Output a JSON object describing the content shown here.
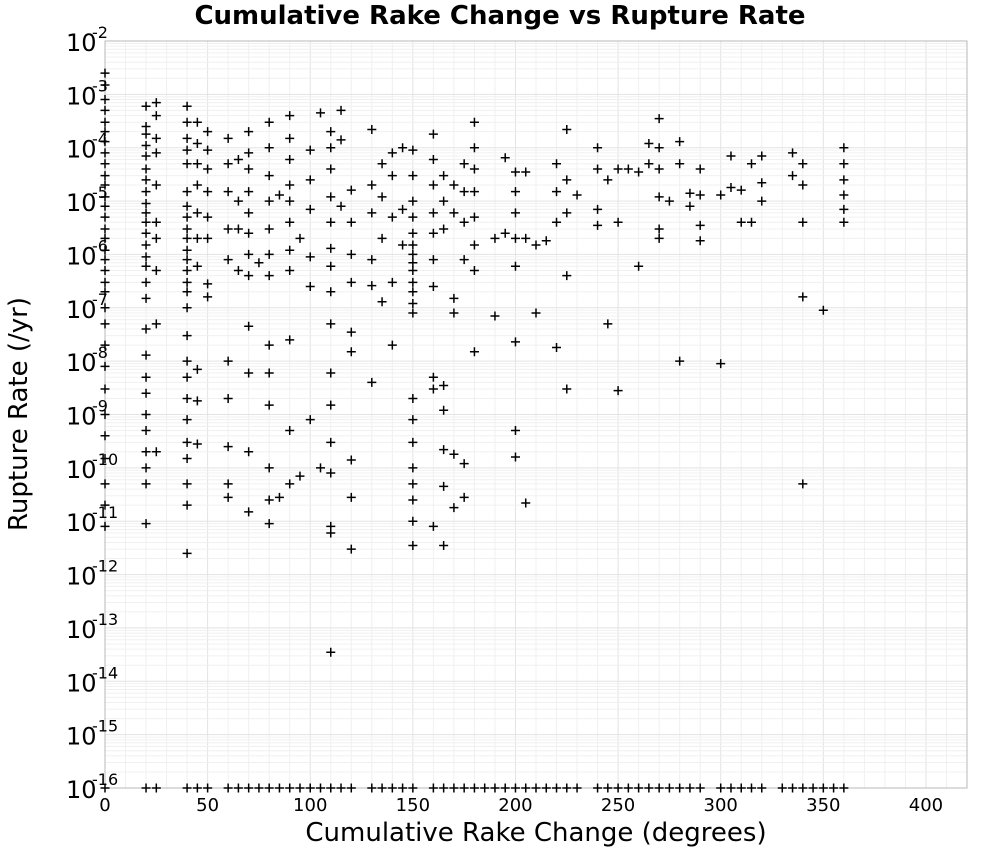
{
  "chart_data": {
    "type": "scatter",
    "title": "Cumulative Rake Change vs Rupture Rate",
    "xlabel": "Cumulative Rake Change (degrees)",
    "ylabel": "Rupture Rate (/yr)",
    "xlim": [
      0,
      420
    ],
    "ylim": [
      1e-16,
      0.01
    ],
    "y_scale": "log",
    "grid": true,
    "marker": "plus",
    "marker_color": "#000000",
    "x_ticks": [
      "0",
      "50",
      "100",
      "150",
      "200",
      "250",
      "300",
      "350",
      "400"
    ],
    "y_ticks": [
      {
        "base": "10",
        "exp": "-2"
      },
      {
        "base": "10",
        "exp": "-3"
      },
      {
        "base": "10",
        "exp": "-4"
      },
      {
        "base": "10",
        "exp": "-5"
      },
      {
        "base": "10",
        "exp": "-6"
      },
      {
        "base": "10",
        "exp": "-7"
      },
      {
        "base": "10",
        "exp": "-8"
      },
      {
        "base": "10",
        "exp": "-9"
      },
      {
        "base": "10",
        "exp": "-10"
      },
      {
        "base": "10",
        "exp": "-11"
      },
      {
        "base": "10",
        "exp": "-12"
      },
      {
        "base": "10",
        "exp": "-13"
      },
      {
        "base": "10",
        "exp": "-14"
      },
      {
        "base": "10",
        "exp": "-15"
      },
      {
        "base": "10",
        "exp": "-16"
      }
    ],
    "points": [
      [
        0,
        0.0025
      ],
      [
        0,
        0.0015
      ],
      [
        0,
        0.0008
      ],
      [
        0,
        0.0005
      ],
      [
        0,
        0.0003
      ],
      [
        0,
        0.0002
      ],
      [
        0,
        0.00013
      ],
      [
        0,
        8e-05
      ],
      [
        0,
        5e-05
      ],
      [
        0,
        3e-05
      ],
      [
        0,
        2e-05
      ],
      [
        0,
        1.2e-05
      ],
      [
        0,
        8e-06
      ],
      [
        0,
        5e-06
      ],
      [
        0,
        3e-06
      ],
      [
        0,
        2e-06
      ],
      [
        0,
        1.2e-06
      ],
      [
        0,
        8e-07
      ],
      [
        0,
        5e-07
      ],
      [
        0,
        3e-07
      ],
      [
        0,
        2e-07
      ],
      [
        0,
        1e-07
      ],
      [
        0,
        5e-08
      ],
      [
        0,
        2e-08
      ],
      [
        0,
        8e-09
      ],
      [
        0,
        3e-09
      ],
      [
        0,
        1e-09
      ],
      [
        0,
        4e-10
      ],
      [
        0,
        1.5e-10
      ],
      [
        0,
        5e-11
      ],
      [
        0,
        2e-11
      ],
      [
        0,
        8e-12
      ],
      [
        20,
        0.0006
      ],
      [
        20,
        0.00025
      ],
      [
        20,
        0.00018
      ],
      [
        20,
        0.00011
      ],
      [
        20,
        7e-05
      ],
      [
        20,
        4e-05
      ],
      [
        20,
        2.5e-05
      ],
      [
        20,
        1.5e-05
      ],
      [
        20,
        9e-06
      ],
      [
        20,
        6e-06
      ],
      [
        20,
        4e-06
      ],
      [
        20,
        2.5e-06
      ],
      [
        20,
        1.5e-06
      ],
      [
        20,
        9e-07
      ],
      [
        20,
        6e-07
      ],
      [
        20,
        3e-07
      ],
      [
        20,
        1.5e-07
      ],
      [
        20,
        4e-08
      ],
      [
        20,
        1.3e-08
      ],
      [
        20,
        5e-09
      ],
      [
        20,
        2.5e-09
      ],
      [
        20,
        1e-09
      ],
      [
        20,
        5e-10
      ],
      [
        20,
        2e-10
      ],
      [
        20,
        1e-10
      ],
      [
        20,
        5e-11
      ],
      [
        20,
        9e-12
      ],
      [
        25,
        0.0007
      ],
      [
        25,
        0.0004
      ],
      [
        25,
        0.00015
      ],
      [
        25,
        8e-05
      ],
      [
        25,
        2e-05
      ],
      [
        25,
        4e-06
      ],
      [
        25,
        2e-06
      ],
      [
        25,
        5e-07
      ],
      [
        25,
        5e-08
      ],
      [
        25,
        2e-10
      ],
      [
        40,
        0.0006
      ],
      [
        40,
        0.0003
      ],
      [
        40,
        0.00015
      ],
      [
        40,
        9e-05
      ],
      [
        40,
        5e-05
      ],
      [
        40,
        1.5e-05
      ],
      [
        40,
        8e-06
      ],
      [
        40,
        5e-06
      ],
      [
        40,
        3e-06
      ],
      [
        40,
        2e-06
      ],
      [
        40,
        1.2e-06
      ],
      [
        40,
        8e-07
      ],
      [
        40,
        5e-07
      ],
      [
        40,
        3e-07
      ],
      [
        40,
        2e-07
      ],
      [
        40,
        1e-07
      ],
      [
        40,
        3e-08
      ],
      [
        40,
        1e-08
      ],
      [
        40,
        5e-09
      ],
      [
        40,
        2e-09
      ],
      [
        40,
        8e-10
      ],
      [
        40,
        3e-10
      ],
      [
        40,
        1.5e-10
      ],
      [
        40,
        5e-11
      ],
      [
        40,
        2e-11
      ],
      [
        40,
        2.5e-12
      ],
      [
        45,
        0.0003
      ],
      [
        45,
        0.00012
      ],
      [
        45,
        5e-05
      ],
      [
        45,
        2e-05
      ],
      [
        45,
        6e-06
      ],
      [
        45,
        2e-06
      ],
      [
        45,
        6e-07
      ],
      [
        45,
        7e-09
      ],
      [
        45,
        1.8e-09
      ],
      [
        45,
        2.8e-10
      ],
      [
        50,
        0.0002
      ],
      [
        50,
        9e-05
      ],
      [
        50,
        4e-05
      ],
      [
        50,
        1.5e-05
      ],
      [
        50,
        5e-06
      ],
      [
        50,
        2e-06
      ],
      [
        50,
        2.8e-07
      ],
      [
        50,
        1.6e-07
      ],
      [
        60,
        0.00015
      ],
      [
        60,
        5e-05
      ],
      [
        60,
        1.5e-05
      ],
      [
        60,
        3e-06
      ],
      [
        60,
        8e-07
      ],
      [
        60,
        1e-08
      ],
      [
        60,
        2e-09
      ],
      [
        60,
        2.5e-10
      ],
      [
        60,
        5e-11
      ],
      [
        60,
        2.8e-11
      ],
      [
        65,
        6e-05
      ],
      [
        65,
        1e-05
      ],
      [
        65,
        3e-06
      ],
      [
        65,
        5e-07
      ],
      [
        70,
        0.0002
      ],
      [
        70,
        8e-05
      ],
      [
        70,
        4e-05
      ],
      [
        70,
        1.5e-05
      ],
      [
        70,
        6e-06
      ],
      [
        70,
        2.5e-06
      ],
      [
        70,
        1e-06
      ],
      [
        70,
        4e-07
      ],
      [
        70,
        4.5e-08
      ],
      [
        70,
        6e-09
      ],
      [
        70,
        2e-10
      ],
      [
        70,
        1.5e-11
      ],
      [
        75,
        7e-07
      ],
      [
        80,
        0.0003
      ],
      [
        80,
        0.0001
      ],
      [
        80,
        3e-05
      ],
      [
        80,
        1e-05
      ],
      [
        80,
        3e-06
      ],
      [
        80,
        1e-06
      ],
      [
        80,
        4e-07
      ],
      [
        80,
        2e-08
      ],
      [
        80,
        6e-09
      ],
      [
        80,
        1.5e-09
      ],
      [
        80,
        1e-10
      ],
      [
        80,
        2.5e-11
      ],
      [
        80,
        9e-12
      ],
      [
        85,
        1.3e-05
      ],
      [
        85,
        2.8e-11
      ],
      [
        90,
        0.0004
      ],
      [
        90,
        0.00015
      ],
      [
        90,
        6e-05
      ],
      [
        90,
        2e-05
      ],
      [
        90,
        1e-05
      ],
      [
        90,
        4e-06
      ],
      [
        90,
        1.2e-06
      ],
      [
        90,
        5e-07
      ],
      [
        90,
        2.5e-08
      ],
      [
        90,
        5e-10
      ],
      [
        90,
        5e-11
      ],
      [
        95,
        2e-06
      ],
      [
        95,
        7e-11
      ],
      [
        100,
        9e-05
      ],
      [
        100,
        2.5e-05
      ],
      [
        100,
        7e-06
      ],
      [
        100,
        9e-07
      ],
      [
        100,
        2.5e-07
      ],
      [
        100,
        8e-10
      ],
      [
        105,
        0.00045
      ],
      [
        105,
        1e-10
      ],
      [
        110,
        0.0002
      ],
      [
        110,
        0.0001
      ],
      [
        110,
        4e-05
      ],
      [
        110,
        1.2e-05
      ],
      [
        110,
        4e-06
      ],
      [
        110,
        1.3e-06
      ],
      [
        110,
        6e-07
      ],
      [
        110,
        2e-07
      ],
      [
        110,
        5e-08
      ],
      [
        110,
        6e-09
      ],
      [
        110,
        1.5e-09
      ],
      [
        110,
        3e-10
      ],
      [
        110,
        8e-11
      ],
      [
        110,
        8e-12
      ],
      [
        110,
        6e-12
      ],
      [
        110,
        3.5e-14
      ],
      [
        115,
        0.0005
      ],
      [
        115,
        0.00014
      ],
      [
        115,
        8e-06
      ],
      [
        120,
        1.6e-05
      ],
      [
        120,
        4e-06
      ],
      [
        120,
        1e-06
      ],
      [
        120,
        3e-07
      ],
      [
        120,
        3.5e-08
      ],
      [
        120,
        1.5e-08
      ],
      [
        120,
        1.4e-10
      ],
      [
        120,
        2.8e-11
      ],
      [
        120,
        3e-12
      ],
      [
        130,
        0.00022
      ],
      [
        130,
        2e-05
      ],
      [
        130,
        6e-06
      ],
      [
        130,
        8e-07
      ],
      [
        130,
        2.6e-07
      ],
      [
        130,
        4e-09
      ],
      [
        135,
        5e-05
      ],
      [
        135,
        1.2e-05
      ],
      [
        135,
        2e-06
      ],
      [
        135,
        1.3e-07
      ],
      [
        140,
        8e-05
      ],
      [
        140,
        3e-05
      ],
      [
        140,
        5e-06
      ],
      [
        140,
        3e-07
      ],
      [
        140,
        2e-08
      ],
      [
        145,
        0.0001
      ],
      [
        145,
        7e-06
      ],
      [
        145,
        1.5e-06
      ],
      [
        150,
        9e-05
      ],
      [
        150,
        3e-05
      ],
      [
        150,
        1e-05
      ],
      [
        150,
        5e-06
      ],
      [
        150,
        2.5e-06
      ],
      [
        150,
        1.5e-06
      ],
      [
        150,
        1e-06
      ],
      [
        150,
        7e-07
      ],
      [
        150,
        5e-07
      ],
      [
        150,
        3e-07
      ],
      [
        150,
        2e-07
      ],
      [
        150,
        1.2e-07
      ],
      [
        150,
        8e-08
      ],
      [
        150,
        2e-09
      ],
      [
        150,
        8e-10
      ],
      [
        150,
        3e-10
      ],
      [
        150,
        1e-10
      ],
      [
        150,
        5e-11
      ],
      [
        150,
        2.5e-11
      ],
      [
        150,
        1e-11
      ],
      [
        150,
        3.5e-12
      ],
      [
        160,
        0.00018
      ],
      [
        160,
        6e-05
      ],
      [
        160,
        2e-05
      ],
      [
        160,
        6e-06
      ],
      [
        160,
        2.5e-06
      ],
      [
        160,
        8e-07
      ],
      [
        160,
        2.5e-07
      ],
      [
        160,
        5e-09
      ],
      [
        160,
        3e-09
      ],
      [
        160,
        8e-12
      ],
      [
        165,
        3e-05
      ],
      [
        165,
        1e-05
      ],
      [
        165,
        3e-06
      ],
      [
        165,
        3.5e-09
      ],
      [
        165,
        1.2e-09
      ],
      [
        165,
        2.2e-10
      ],
      [
        165,
        4.5e-11
      ],
      [
        165,
        3.5e-12
      ],
      [
        170,
        2e-05
      ],
      [
        170,
        6e-06
      ],
      [
        170,
        1.5e-07
      ],
      [
        170,
        8e-08
      ],
      [
        170,
        1.8e-10
      ],
      [
        170,
        1.8e-11
      ],
      [
        175,
        5e-05
      ],
      [
        175,
        1.5e-05
      ],
      [
        175,
        4e-06
      ],
      [
        175,
        8e-07
      ],
      [
        175,
        1.2e-10
      ],
      [
        175,
        2.8e-11
      ],
      [
        180,
        0.0003
      ],
      [
        180,
        0.0001
      ],
      [
        180,
        4e-05
      ],
      [
        180,
        1.5e-05
      ],
      [
        180,
        5e-06
      ],
      [
        180,
        1.5e-06
      ],
      [
        180,
        5e-07
      ],
      [
        180,
        1.5e-08
      ],
      [
        190,
        2e-06
      ],
      [
        190,
        7e-08
      ],
      [
        195,
        6.5e-05
      ],
      [
        195,
        2.5e-06
      ],
      [
        200,
        3.5e-05
      ],
      [
        200,
        1.5e-05
      ],
      [
        200,
        6e-06
      ],
      [
        200,
        2e-06
      ],
      [
        200,
        6e-07
      ],
      [
        200,
        2.3e-08
      ],
      [
        200,
        5e-10
      ],
      [
        200,
        1.6e-10
      ],
      [
        205,
        3.5e-05
      ],
      [
        205,
        2e-06
      ],
      [
        205,
        2.2e-11
      ],
      [
        210,
        1.5e-06
      ],
      [
        210,
        8e-08
      ],
      [
        215,
        1.8e-06
      ],
      [
        220,
        5e-05
      ],
      [
        220,
        1.5e-05
      ],
      [
        220,
        4e-06
      ],
      [
        220,
        1.8e-08
      ],
      [
        225,
        0.00022
      ],
      [
        225,
        2.5e-05
      ],
      [
        225,
        6e-06
      ],
      [
        225,
        4e-07
      ],
      [
        225,
        3e-09
      ],
      [
        230,
        1.3e-05
      ],
      [
        240,
        0.0001
      ],
      [
        240,
        4e-05
      ],
      [
        240,
        7e-06
      ],
      [
        240,
        3.5e-06
      ],
      [
        245,
        2.5e-05
      ],
      [
        245,
        5e-08
      ],
      [
        250,
        4e-05
      ],
      [
        250,
        4e-06
      ],
      [
        250,
        2.8e-09
      ],
      [
        255,
        4e-05
      ],
      [
        260,
        3.5e-05
      ],
      [
        260,
        6e-07
      ],
      [
        265,
        0.00012
      ],
      [
        265,
        5e-05
      ],
      [
        270,
        0.00035
      ],
      [
        270,
        0.0001
      ],
      [
        270,
        4e-05
      ],
      [
        270,
        1.2e-05
      ],
      [
        270,
        3e-06
      ],
      [
        270,
        2e-06
      ],
      [
        275,
        1e-05
      ],
      [
        280,
        0.00013
      ],
      [
        280,
        5e-05
      ],
      [
        280,
        1e-08
      ],
      [
        285,
        1.4e-05
      ],
      [
        285,
        8e-06
      ],
      [
        290,
        4e-05
      ],
      [
        290,
        1.3e-05
      ],
      [
        290,
        3.5e-06
      ],
      [
        290,
        1.8e-06
      ],
      [
        300,
        1.3e-05
      ],
      [
        300,
        9e-09
      ],
      [
        305,
        7e-05
      ],
      [
        305,
        1.8e-05
      ],
      [
        310,
        1.6e-05
      ],
      [
        310,
        4e-06
      ],
      [
        315,
        5e-05
      ],
      [
        315,
        4e-06
      ],
      [
        320,
        7e-05
      ],
      [
        320,
        2.2e-05
      ],
      [
        320,
        1e-05
      ],
      [
        335,
        8e-05
      ],
      [
        335,
        3e-05
      ],
      [
        340,
        5e-05
      ],
      [
        340,
        2e-05
      ],
      [
        340,
        4e-06
      ],
      [
        340,
        1.6e-07
      ],
      [
        340,
        5e-11
      ],
      [
        350,
        9e-08
      ],
      [
        360,
        0.0001
      ],
      [
        360,
        5e-05
      ],
      [
        360,
        2.5e-05
      ],
      [
        360,
        1.3e-05
      ],
      [
        360,
        7e-06
      ],
      [
        360,
        4e-06
      ]
    ],
    "floor_points_x": [
      0,
      20,
      25,
      40,
      45,
      50,
      60,
      65,
      70,
      75,
      80,
      85,
      90,
      95,
      100,
      105,
      110,
      115,
      120,
      130,
      135,
      140,
      145,
      150,
      160,
      165,
      170,
      175,
      180,
      185,
      190,
      195,
      200,
      205,
      210,
      215,
      220,
      225,
      230,
      240,
      245,
      250,
      255,
      260,
      265,
      270,
      275,
      280,
      285,
      290,
      300,
      305,
      310,
      315,
      320,
      330,
      335,
      340,
      345,
      350,
      355,
      360
    ],
    "floor_points_y": 1e-16
  }
}
